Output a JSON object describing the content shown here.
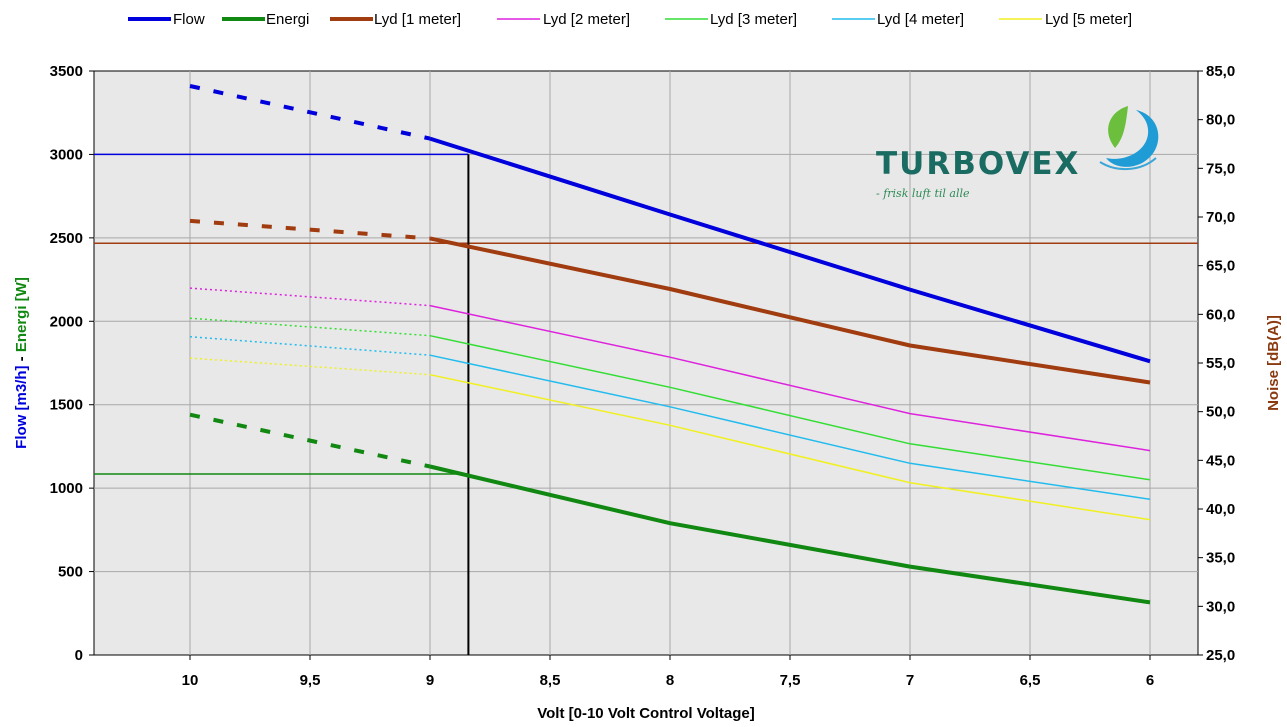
{
  "colors": {
    "flow": "#0000dd",
    "energi": "#118811",
    "lyd1": "#a03c10",
    "lyd2": "#dd22dd",
    "lyd3": "#33dd33",
    "lyd4": "#22bbee",
    "lyd5": "#f0f020",
    "plot_bg": "#e8e8e8",
    "grid": "#a8a8a8",
    "brand_text": "#1a6b62",
    "tagline": "#2e8b57",
    "noise_label": "#8b3a10"
  },
  "brand": {
    "name": "TURBOVEX",
    "tagline": "- frisk luft til alle",
    "icon": "leaf-swirl-icon"
  },
  "chart_data": {
    "type": "line",
    "xlabel": "Volt [0-10 Volt Control Voltage]",
    "ylabel_left_flow": "Flow [m3/h]",
    "ylabel_left_sep": " - ",
    "ylabel_left_energi": "Energi [W]",
    "ylabel_right": "Noise [dB(A)]",
    "x_reversed": true,
    "xlim": [
      10.4,
      5.8
    ],
    "ylim_left": [
      0,
      3500
    ],
    "ylim_right": [
      25,
      85
    ],
    "grid": true,
    "legend_position": "top",
    "x_ticks": [
      {
        "value": 10,
        "label": "10"
      },
      {
        "value": 9.5,
        "label": "9,5"
      },
      {
        "value": 9,
        "label": "9"
      },
      {
        "value": 8.5,
        "label": "8,5"
      },
      {
        "value": 8,
        "label": "8"
      },
      {
        "value": 7.5,
        "label": "7,5"
      },
      {
        "value": 7,
        "label": "7"
      },
      {
        "value": 6.5,
        "label": "6,5"
      },
      {
        "value": 6,
        "label": "6"
      }
    ],
    "y_left_ticks": [
      {
        "value": 0,
        "label": "0"
      },
      {
        "value": 500,
        "label": "500"
      },
      {
        "value": 1000,
        "label": "1000"
      },
      {
        "value": 1500,
        "label": "1500"
      },
      {
        "value": 2000,
        "label": "2000"
      },
      {
        "value": 2500,
        "label": "2500"
      },
      {
        "value": 3000,
        "label": "3000"
      },
      {
        "value": 3500,
        "label": "3500"
      }
    ],
    "y_right_ticks": [
      {
        "value": 25,
        "label": "25,0"
      },
      {
        "value": 30,
        "label": "30,0"
      },
      {
        "value": 35,
        "label": "35,0"
      },
      {
        "value": 40,
        "label": "40,0"
      },
      {
        "value": 45,
        "label": "45,0"
      },
      {
        "value": 50,
        "label": "50,0"
      },
      {
        "value": 55,
        "label": "55,0"
      },
      {
        "value": 60,
        "label": "60,0"
      },
      {
        "value": 65,
        "label": "65,0"
      },
      {
        "value": 70,
        "label": "70,0"
      },
      {
        "value": 75,
        "label": "75,0"
      },
      {
        "value": 80,
        "label": "80,0"
      },
      {
        "value": 85,
        "label": "85,0"
      }
    ],
    "series": [
      {
        "key": "flow",
        "name": "Flow",
        "axis": "left",
        "color_key": "flow",
        "width": 4,
        "dashed": [
          [
            10,
            3410
          ],
          [
            9,
            3095
          ]
        ],
        "solid": [
          [
            9,
            3095
          ],
          [
            8,
            2640
          ],
          [
            7,
            2190
          ],
          [
            6,
            1760
          ]
        ]
      },
      {
        "key": "energi",
        "name": "Energi",
        "axis": "left",
        "color_key": "energi",
        "width": 4,
        "dashed": [
          [
            10,
            1440
          ],
          [
            9,
            1130
          ]
        ],
        "solid": [
          [
            9,
            1130
          ],
          [
            8,
            790
          ],
          [
            7,
            530
          ],
          [
            6,
            315
          ]
        ]
      },
      {
        "key": "lyd1",
        "name": "Lyd [1 meter]",
        "axis": "right",
        "color_key": "lyd1",
        "width": 4,
        "dashed": [
          [
            10,
            69.6
          ],
          [
            9,
            67.8
          ]
        ],
        "solid": [
          [
            9,
            67.8
          ],
          [
            8,
            62.6
          ],
          [
            7,
            56.8
          ],
          [
            6,
            53.0
          ]
        ]
      },
      {
        "key": "lyd2",
        "name": "Lyd [2 meter]",
        "axis": "right",
        "color_key": "lyd2",
        "width": 1.5,
        "dashed": [
          [
            10,
            62.7
          ],
          [
            9,
            60.9
          ]
        ],
        "solid": [
          [
            9,
            60.9
          ],
          [
            8,
            55.6
          ],
          [
            7,
            49.8
          ],
          [
            6,
            46.0
          ]
        ]
      },
      {
        "key": "lyd3",
        "name": "Lyd [3 meter]",
        "axis": "right",
        "color_key": "lyd3",
        "width": 1.5,
        "dashed": [
          [
            10,
            59.6
          ],
          [
            9,
            57.8
          ]
        ],
        "solid": [
          [
            9,
            57.8
          ],
          [
            8,
            52.5
          ],
          [
            7,
            46.7
          ],
          [
            6,
            43.0
          ]
        ]
      },
      {
        "key": "lyd4",
        "name": "Lyd [4 meter]",
        "axis": "right",
        "color_key": "lyd4",
        "width": 1.5,
        "dashed": [
          [
            10,
            57.7
          ],
          [
            9,
            55.8
          ]
        ],
        "solid": [
          [
            9,
            55.8
          ],
          [
            8,
            50.5
          ],
          [
            7,
            44.7
          ],
          [
            6,
            41.0
          ]
        ]
      },
      {
        "key": "lyd5",
        "name": "Lyd [5 meter]",
        "axis": "right",
        "color_key": "lyd5",
        "width": 1.5,
        "dashed": [
          [
            10,
            55.5
          ],
          [
            9,
            53.8
          ]
        ],
        "solid": [
          [
            9,
            53.8
          ],
          [
            8,
            48.6
          ],
          [
            7,
            42.7
          ],
          [
            6,
            38.9
          ]
        ]
      }
    ],
    "reference_lines": [
      {
        "name": "flow-reference",
        "orientation": "horizontal",
        "axis": "left",
        "value": 3000,
        "x_from": 10.4,
        "x_to": 8.84,
        "color_key": "flow"
      },
      {
        "name": "energi-reference",
        "orientation": "horizontal",
        "axis": "left",
        "value": 1085,
        "x_from": 10.4,
        "x_to": 8.84,
        "color_key": "energi"
      },
      {
        "name": "noise-reference",
        "orientation": "horizontal",
        "axis": "right",
        "value": 67.3,
        "x_from": 10.4,
        "x_to": 5.8,
        "color_key": "lyd1"
      },
      {
        "name": "voltage-reference",
        "orientation": "vertical",
        "value": 8.84,
        "y_from": 0,
        "y_to": 3000,
        "color": "#000000"
      }
    ]
  }
}
